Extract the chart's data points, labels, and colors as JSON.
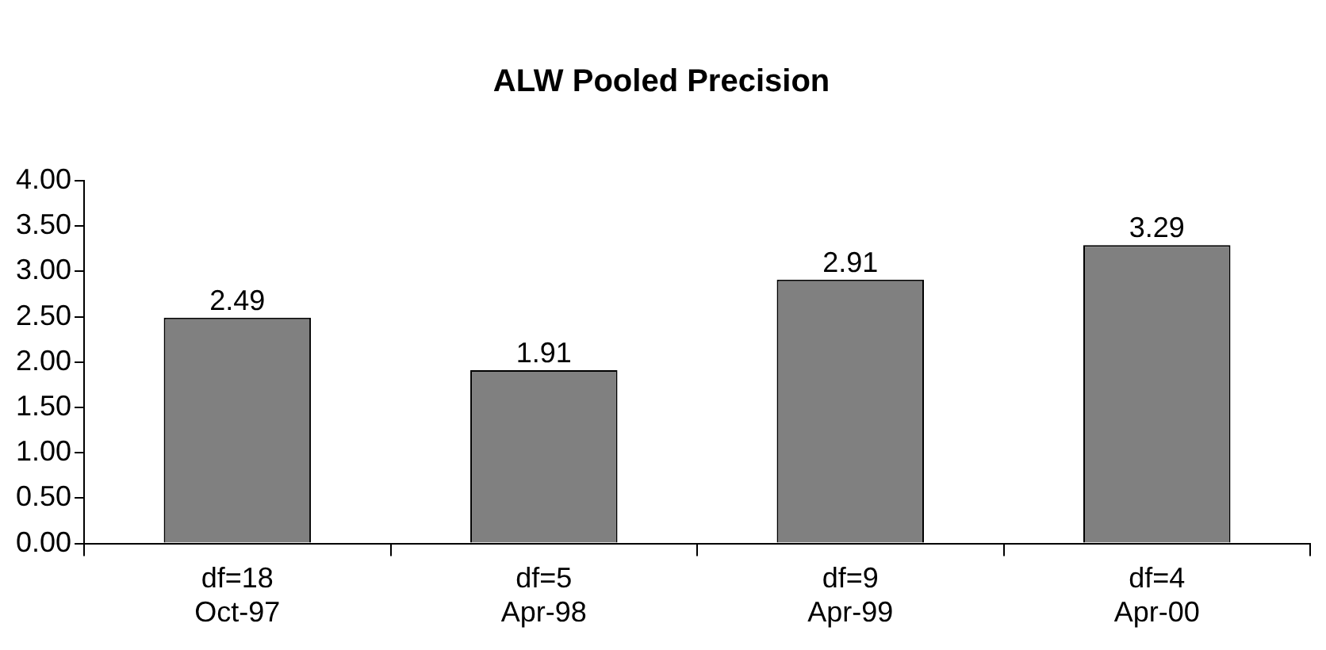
{
  "chart_data": {
    "type": "bar",
    "title": "ALW Pooled Precision",
    "categories": [
      "df=18\nOct-97",
      "df=5\nApr-98",
      "df=9\nApr-99",
      "df=4\nApr-00"
    ],
    "values": [
      2.49,
      1.91,
      2.91,
      3.29
    ],
    "color": "#808080",
    "ylim": [
      0,
      4
    ],
    "yticks": [
      {
        "value": 0,
        "label": "0.00"
      },
      {
        "value": 0.5,
        "label": "0.50"
      },
      {
        "value": 1,
        "label": "1.00"
      },
      {
        "value": 1.5,
        "label": "1.50"
      },
      {
        "value": 2,
        "label": "2.00"
      },
      {
        "value": 2.5,
        "label": "2.50"
      },
      {
        "value": 3,
        "label": "3.00"
      },
      {
        "value": 3.5,
        "label": "3.50"
      },
      {
        "value": 4,
        "label": "4.00"
      }
    ],
    "grid": false,
    "legend": false,
    "data_labels": true
  }
}
